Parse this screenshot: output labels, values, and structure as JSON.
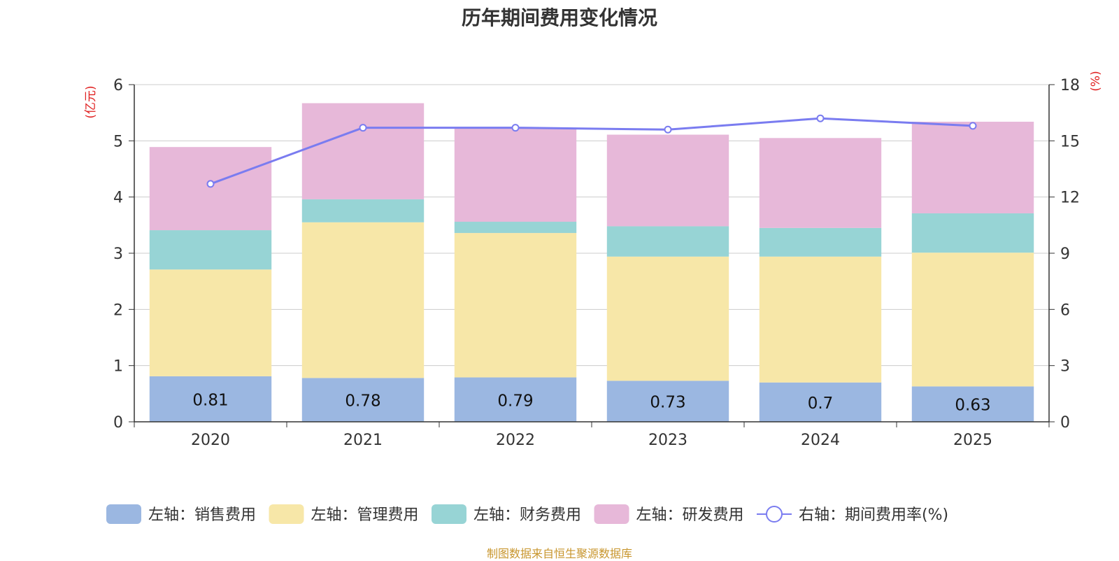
{
  "chart_data": {
    "type": "bar",
    "stacked": true,
    "title": "历年期间费用变化情况",
    "categories": [
      "2020",
      "2021",
      "2022",
      "2023",
      "2024",
      "2025"
    ],
    "series": [
      {
        "name": "左轴：销售费用",
        "axis": "left",
        "color": "#9bb7e1",
        "values": [
          0.81,
          0.78,
          0.79,
          0.73,
          0.7,
          0.63
        ],
        "labels": [
          "0.81",
          "0.78",
          "0.79",
          "0.73",
          "0.7",
          "0.63"
        ]
      },
      {
        "name": "左轴：管理费用",
        "axis": "left",
        "color": "#f7e7a8",
        "values": [
          1.9,
          2.77,
          2.57,
          2.21,
          2.24,
          2.38
        ]
      },
      {
        "name": "左轴：财务费用",
        "axis": "left",
        "color": "#97d4d5",
        "values": [
          0.7,
          0.41,
          0.2,
          0.54,
          0.51,
          0.7
        ]
      },
      {
        "name": "左轴：研发费用",
        "axis": "left",
        "color": "#e7b8d9",
        "values": [
          1.48,
          1.71,
          1.66,
          1.63,
          1.6,
          1.63
        ]
      }
    ],
    "line_series": {
      "name": "右轴：期间费用率(%)",
      "axis": "right",
      "color": "#7a7cf0",
      "values": [
        12.7,
        15.7,
        15.7,
        15.6,
        16.2,
        15.8
      ]
    },
    "y_left": {
      "label": "(亿元)",
      "ylim": [
        0,
        6
      ],
      "ticks": [
        "0",
        "1",
        "2",
        "3",
        "4",
        "5",
        "6"
      ]
    },
    "y_right": {
      "label": "(%)",
      "ylim": [
        0,
        18
      ],
      "ticks": [
        "0",
        "3",
        "6",
        "9",
        "12",
        "15",
        "18"
      ]
    },
    "legend_position": "bottom",
    "source": "制图数据来自恒生聚源数据库"
  }
}
